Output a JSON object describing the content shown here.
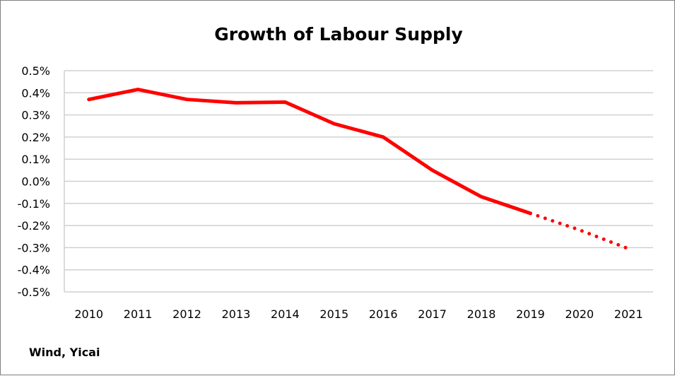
{
  "chart_data": {
    "type": "line",
    "title": "Growth of Labour Supply",
    "xlabel": "",
    "ylabel": "",
    "categories": [
      "2010",
      "2011",
      "2012",
      "2013",
      "2014",
      "2015",
      "2016",
      "2017",
      "2018",
      "2019",
      "2020",
      "2021"
    ],
    "y_tick_labels": [
      "0.5%",
      "0.4%",
      "0.3%",
      "0.2%",
      "0.1%",
      "0.0%",
      "-0.1%",
      "-0.2%",
      "-0.3%",
      "-0.4%",
      "-0.5%"
    ],
    "y_ticks": [
      0.5,
      0.4,
      0.3,
      0.2,
      0.1,
      0.0,
      -0.1,
      -0.2,
      -0.3,
      -0.4,
      -0.5
    ],
    "ylim": [
      -0.5,
      0.5
    ],
    "y_unit": "%",
    "grid": true,
    "legend": "none",
    "series": [
      {
        "values": [
          0.37,
          0.415,
          0.37,
          0.355,
          0.358,
          0.26,
          0.2,
          0.05,
          -0.07,
          -0.145,
          -0.22,
          -0.305
        ],
        "color": "#ff0000",
        "style_solid_until_category": "2019",
        "style_after": "dotted"
      }
    ],
    "source": "Wind, Yicai"
  }
}
